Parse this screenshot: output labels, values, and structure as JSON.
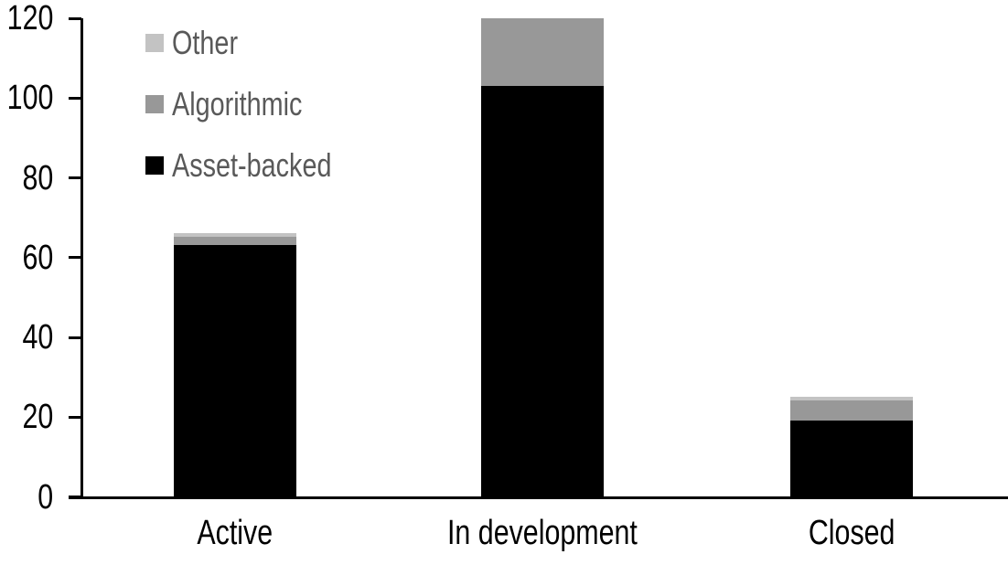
{
  "chart_data": {
    "type": "bar",
    "stacked": true,
    "title": "",
    "xlabel": "",
    "ylabel": "",
    "categories": [
      "Active",
      "In development",
      "Closed"
    ],
    "series": [
      {
        "name": "Asset-backed",
        "color": "#000000",
        "values": [
          63,
          103,
          19
        ]
      },
      {
        "name": "Algorithmic",
        "color": "#989898",
        "values": [
          2,
          17,
          5
        ]
      },
      {
        "name": "Other",
        "color": "#c3c3c3",
        "values": [
          1,
          0,
          1
        ]
      }
    ],
    "totals": [
      66,
      120,
      25
    ],
    "ylim": [
      0,
      120
    ],
    "y_ticks": [
      0,
      20,
      40,
      60,
      80,
      100,
      120
    ],
    "grid": false,
    "legend_position": "top-left",
    "legend_order_top_to_bottom": [
      "Other",
      "Algorithmic",
      "Asset-backed"
    ],
    "axis_color": "#000000",
    "tick_label_color": "#000000",
    "legend_text_color": "#595959",
    "background_color": "#ffffff"
  }
}
